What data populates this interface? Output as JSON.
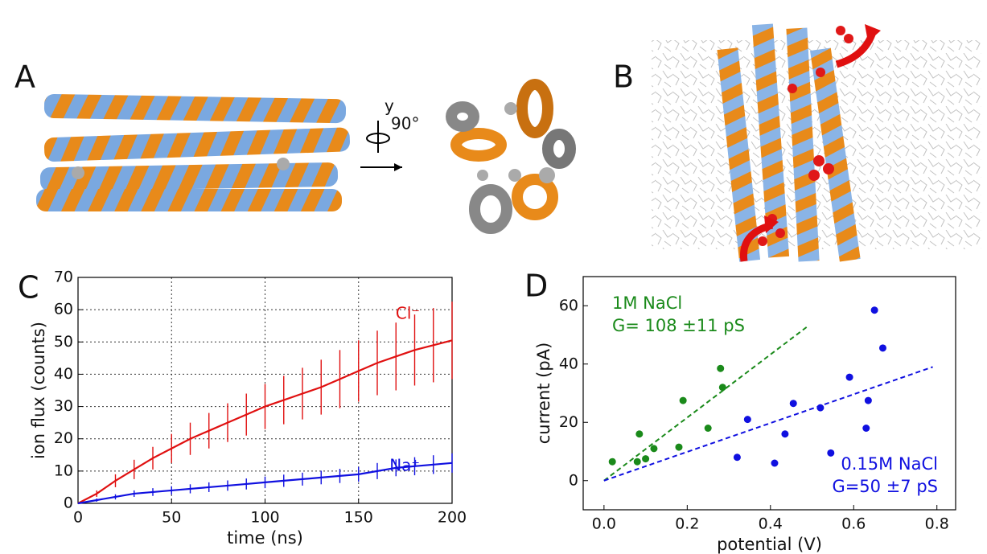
{
  "figure": {
    "panel_labels": [
      "A",
      "B"
    ],
    "rotation_axis": "y",
    "rotation_angle": "90°"
  },
  "chart_data": [
    {
      "type": "line",
      "panel_label": "C",
      "x_label": "time (ns)",
      "y_label": "ion flux (counts)",
      "xlim": [
        0,
        200
      ],
      "ylim": [
        0,
        70
      ],
      "xticks": [
        0,
        50,
        100,
        150,
        200
      ],
      "yticks": [
        0,
        10,
        20,
        30,
        40,
        50,
        60,
        70
      ],
      "grid": true,
      "x": [
        0,
        10,
        20,
        30,
        40,
        50,
        60,
        70,
        80,
        90,
        100,
        110,
        120,
        130,
        140,
        150,
        160,
        170,
        180,
        190,
        200
      ],
      "series": [
        {
          "name": "Cl⁻",
          "color": "#e01010",
          "values": [
            0,
            3,
            7,
            10.5,
            14,
            17,
            20,
            22.5,
            25,
            27.5,
            30,
            32,
            34,
            36,
            38.5,
            41,
            43.5,
            45.5,
            47.5,
            49,
            50.5
          ],
          "errors": [
            0,
            1,
            2,
            3,
            3.5,
            4.5,
            5,
            5.5,
            6,
            6.5,
            7,
            7.5,
            8,
            8.5,
            9,
            9.5,
            10,
            10.5,
            11,
            11.5,
            12
          ]
        },
        {
          "name": "Na⁺",
          "color": "#1010e0",
          "values": [
            0,
            1,
            2,
            3,
            3.5,
            4,
            4.5,
            5,
            5.5,
            6,
            6.5,
            7,
            7.5,
            8,
            8.5,
            9,
            10,
            11,
            11.5,
            12,
            12.5
          ],
          "errors": [
            0,
            0.5,
            0.8,
            1,
            1.2,
            1.3,
            1.4,
            1.5,
            1.6,
            1.7,
            1.8,
            1.9,
            2,
            2.1,
            2.2,
            2.3,
            2.5,
            2.6,
            2.8,
            2.9,
            3
          ]
        }
      ]
    },
    {
      "type": "scatter",
      "panel_label": "D",
      "x_label": "potential (V)",
      "y_label": "current (pA)",
      "xlim": [
        -0.05,
        0.845
      ],
      "ylim": [
        -10,
        70
      ],
      "xticks": [
        {
          "value": 0,
          "label": "0.0"
        },
        0.2,
        0.4,
        0.6,
        0.8
      ],
      "yticks": [
        0,
        20,
        40,
        60
      ],
      "series": [
        {
          "name": "1M NaCl",
          "annotation": "G= 108 ±11 pS",
          "color": "#1a8a1a",
          "x": [
            0.02,
            0.08,
            0.085,
            0.1,
            0.12,
            0.18,
            0.19,
            0.25,
            0.28,
            0.285
          ],
          "values": [
            6.5,
            6.5,
            16,
            7.5,
            11,
            11.5,
            27.5,
            18,
            38.5,
            32
          ],
          "fit_x": [
            0,
            0.49
          ],
          "fit_y": [
            0,
            53
          ]
        },
        {
          "name": "0.15M NaCl",
          "annotation": "G=50 ±7 pS",
          "color": "#1010e0",
          "x": [
            0.32,
            0.345,
            0.41,
            0.435,
            0.455,
            0.52,
            0.545,
            0.59,
            0.63,
            0.635,
            0.65,
            0.67
          ],
          "values": [
            8,
            21,
            6,
            16,
            26.5,
            25,
            9.5,
            35.5,
            18,
            27.5,
            58.5,
            45.5
          ],
          "fit_x": [
            0,
            0.79
          ],
          "fit_y": [
            0,
            39
          ]
        }
      ]
    }
  ]
}
